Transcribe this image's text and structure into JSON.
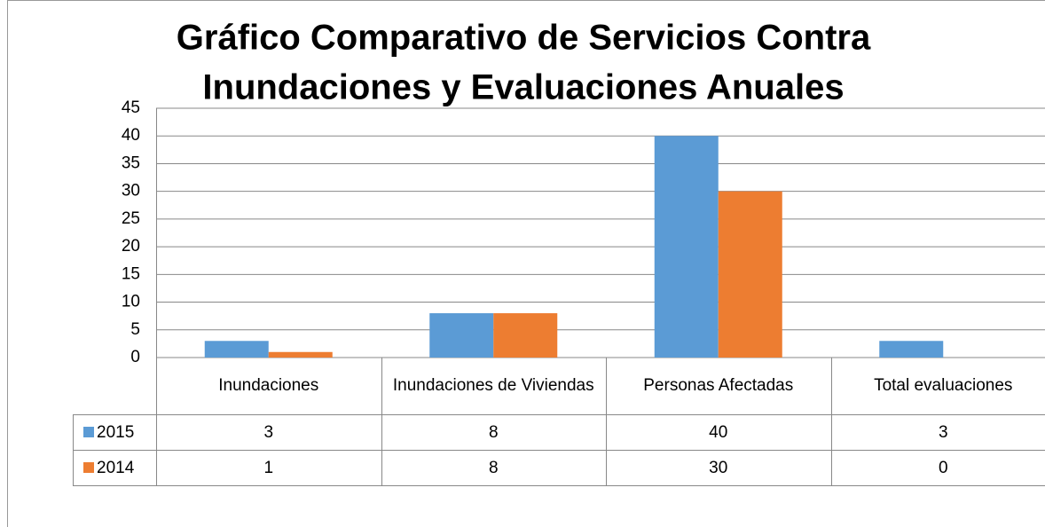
{
  "chart_data": {
    "type": "bar",
    "title": [
      "Gráfico Comparativo  de Servicios Contra",
      "Inundaciones y Evaluaciones Anuales"
    ],
    "categories": [
      "Inundaciones",
      "Inundaciones de Viviendas",
      "Personas Afectadas",
      "Total evaluaciones"
    ],
    "series": [
      {
        "name": "2015",
        "color": "#5b9bd5",
        "values": [
          3,
          8,
          40,
          3
        ]
      },
      {
        "name": "2014",
        "color": "#ed7d31",
        "values": [
          1,
          8,
          30,
          0
        ]
      }
    ],
    "ylim": [
      0,
      45
    ],
    "yticks": [
      0,
      5,
      10,
      15,
      20,
      25,
      30,
      35,
      40,
      45
    ],
    "grid": true
  }
}
